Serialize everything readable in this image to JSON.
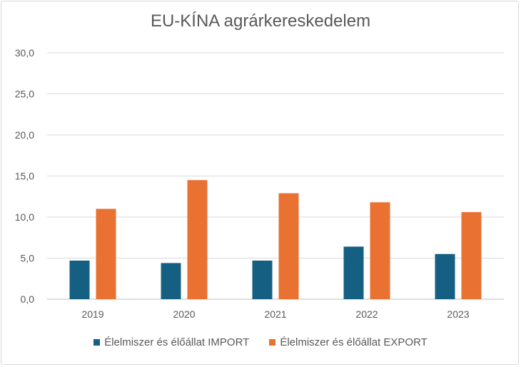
{
  "chart_data": {
    "type": "bar",
    "title": "EU-KÍNA agrárkereskedelem",
    "categories": [
      "2019",
      "2020",
      "2021",
      "2022",
      "2023"
    ],
    "series": [
      {
        "name": "Élelmiszer és élőállat IMPORT",
        "color": "#156082",
        "values": [
          4.7,
          4.4,
          4.7,
          6.4,
          5.5
        ]
      },
      {
        "name": "Élelmiszer és élőállat EXPORT",
        "color": "#E97132",
        "values": [
          11.0,
          14.5,
          12.9,
          11.8,
          10.6
        ]
      }
    ],
    "ylim": [
      0,
      30
    ],
    "yticks": [
      "0,0",
      "5,0",
      "10,0",
      "15,0",
      "20,0",
      "25,0",
      "30,0"
    ],
    "grid": true,
    "legend": "bottom"
  }
}
